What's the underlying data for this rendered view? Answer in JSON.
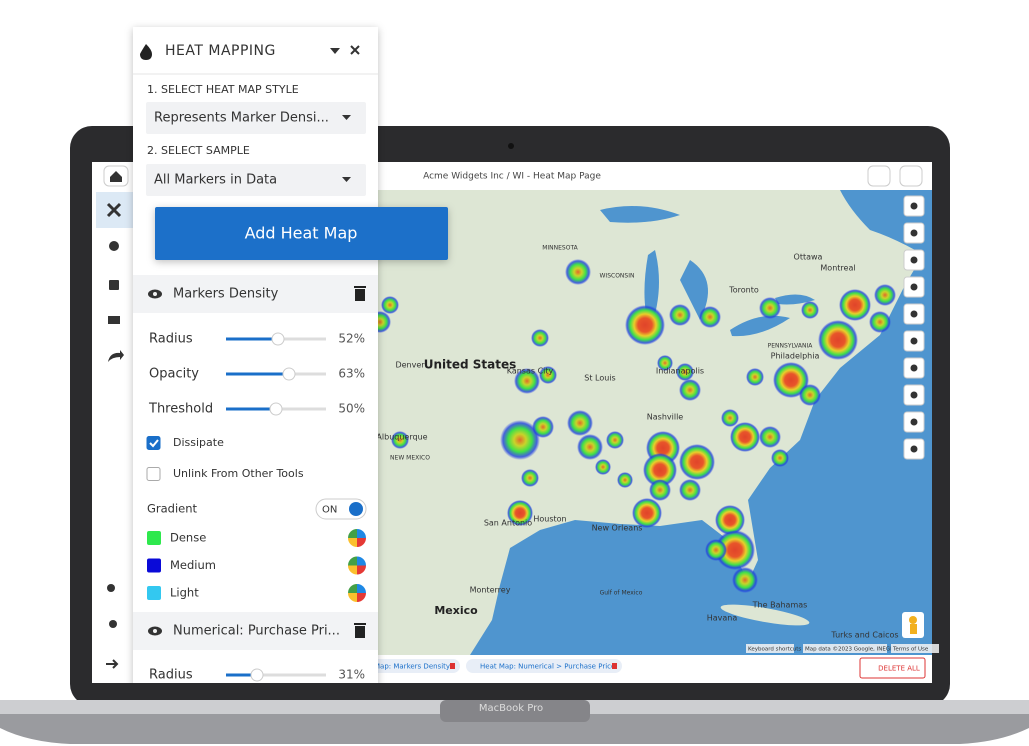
{
  "panel": {
    "title": "HEAT MAPPING",
    "style_label": "1. SELECT HEAT MAP STYLE",
    "style_value": "Represents Marker Densi...",
    "sample_label": "2. SELECT SAMPLE",
    "sample_value": "All Markers in Data",
    "add_button": "Add Heat Map",
    "layers": [
      {
        "name": "Markers Density",
        "sliders": [
          {
            "label": "Radius",
            "value": {
              "value": 52,
              "label": "52%"
            }
          },
          {
            "label": "Opacity",
            "value": {
              "value": 63,
              "label": "63%"
            }
          },
          {
            "label": "Threshold",
            "value": {
              "value": 50,
              "label": "50%"
            }
          }
        ],
        "options": [
          {
            "label": "Dissipate",
            "checked": true
          },
          {
            "label": "Unlink From Other Tools",
            "checked": false
          }
        ],
        "gradient": {
          "label": "Gradient",
          "toggle": "ON",
          "stops": [
            {
              "name": "Dense",
              "color": "#2ee84d"
            },
            {
              "name": "Medium",
              "color": "#0a0ad8"
            },
            {
              "name": "Light",
              "color": "#33c8f0"
            }
          ]
        }
      },
      {
        "name": "Numerical: Purchase Pri...",
        "sliders": [
          {
            "label": "Radius",
            "value": {
              "value": 31,
              "label": "31%"
            }
          }
        ]
      }
    ]
  },
  "map": {
    "title": "Acme Widgets Inc / WI - Heat Map Page",
    "labels": [
      "United States",
      "Mexico",
      "Toronto",
      "Ottawa",
      "Montreal",
      "Philadelphia",
      "PENNSYLVANIA",
      "Indianapolis",
      "St Louis",
      "Nashville",
      "Kansas City",
      "Denver",
      "Albuquerque",
      "NEW MEXICO",
      "San Antonio",
      "Houston",
      "New Orleans",
      "MINNESOTA",
      "WISCONSIN",
      "Havana",
      "The Bahamas",
      "Gulf of Mexico",
      "Turks and Caicos",
      "Monterrey"
    ],
    "layer_chips": [
      "Map: Markers Density",
      "Heat Map: Numerical > Purchase Price"
    ],
    "delete_all": "DELETE ALL",
    "attribution": [
      "Keyboard shortcuts",
      "Map data ©2023 Google, INEGI",
      "Terms of Use"
    ]
  },
  "device": "MacBook Pro"
}
